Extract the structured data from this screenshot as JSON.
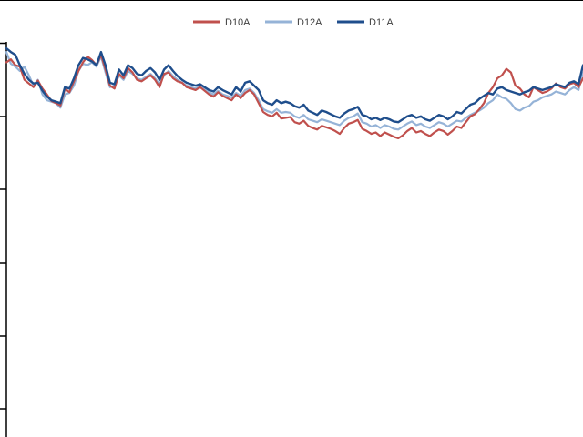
{
  "chart_data": {
    "type": "line",
    "title": "",
    "xlabel": "",
    "ylabel": "",
    "legend_position": "top-center",
    "grid": false,
    "ylim": [
      0,
      6
    ],
    "x": [
      0,
      5,
      10,
      15,
      20,
      25,
      30,
      35,
      40,
      45,
      50,
      55,
      60,
      65,
      70,
      75,
      80,
      85,
      90,
      95,
      100,
      105,
      110,
      115,
      120,
      125,
      130,
      135,
      140,
      145,
      150,
      155,
      160,
      165,
      170,
      175,
      180,
      185,
      190,
      195,
      200,
      205,
      210,
      215,
      220,
      225,
      230,
      235,
      240,
      245,
      250,
      255,
      260,
      265,
      270,
      275,
      280,
      285,
      290,
      295,
      300,
      305,
      310,
      315,
      320,
      325,
      330,
      335,
      340,
      345,
      350,
      355,
      360,
      365,
      370,
      375,
      380,
      385,
      390,
      395,
      400,
      405,
      410,
      415,
      420,
      425,
      430,
      435,
      440,
      445,
      450,
      455,
      460,
      465,
      470,
      475,
      480,
      485,
      490,
      495,
      500,
      505,
      510,
      515,
      520,
      525,
      530,
      535,
      540,
      545,
      550,
      555,
      560,
      565,
      570,
      575,
      580,
      585,
      590,
      595,
      600,
      605,
      610,
      615,
      620,
      625,
      630,
      635,
      640
    ],
    "series": [
      {
        "name": "D10A",
        "color": "#c0504d",
        "values": [
          4.74,
          4.78,
          4.7,
          4.68,
          4.5,
          4.45,
          4.4,
          4.49,
          4.38,
          4.3,
          4.21,
          4.18,
          4.15,
          4.38,
          4.33,
          4.48,
          4.62,
          4.74,
          4.82,
          4.77,
          4.7,
          4.84,
          4.64,
          4.42,
          4.38,
          4.58,
          4.52,
          4.66,
          4.6,
          4.5,
          4.48,
          4.52,
          4.56,
          4.5,
          4.4,
          4.58,
          4.6,
          4.52,
          4.48,
          4.46,
          4.4,
          4.38,
          4.36,
          4.4,
          4.35,
          4.3,
          4.27,
          4.33,
          4.28,
          4.25,
          4.22,
          4.3,
          4.25,
          4.32,
          4.36,
          4.3,
          4.18,
          4.06,
          4.02,
          4.0,
          4.05,
          3.97,
          3.98,
          3.99,
          3.92,
          3.9,
          3.94,
          3.87,
          3.84,
          3.82,
          3.87,
          3.85,
          3.83,
          3.8,
          3.76,
          3.84,
          3.9,
          3.92,
          3.95,
          3.83,
          3.8,
          3.76,
          3.78,
          3.73,
          3.78,
          3.75,
          3.72,
          3.7,
          3.74,
          3.8,
          3.84,
          3.78,
          3.8,
          3.76,
          3.73,
          3.78,
          3.82,
          3.8,
          3.75,
          3.8,
          3.86,
          3.84,
          3.92,
          4.0,
          4.03,
          4.1,
          4.18,
          4.32,
          4.4,
          4.52,
          4.56,
          4.65,
          4.6,
          4.42,
          4.38,
          4.3,
          4.26,
          4.4,
          4.36,
          4.32,
          4.34,
          4.38,
          4.45,
          4.4,
          4.38,
          4.44,
          4.46,
          4.4,
          4.52
        ]
      },
      {
        "name": "D12A",
        "color": "#95b3d7",
        "values": [
          4.88,
          4.72,
          4.68,
          4.62,
          4.68,
          4.56,
          4.42,
          4.5,
          4.3,
          4.22,
          4.2,
          4.18,
          4.12,
          4.3,
          4.32,
          4.42,
          4.62,
          4.72,
          4.7,
          4.74,
          4.68,
          4.82,
          4.6,
          4.4,
          4.42,
          4.56,
          4.5,
          4.62,
          4.58,
          4.52,
          4.5,
          4.54,
          4.58,
          4.52,
          4.44,
          4.56,
          4.62,
          4.55,
          4.5,
          4.46,
          4.42,
          4.4,
          4.38,
          4.42,
          4.38,
          4.33,
          4.3,
          4.35,
          4.3,
          4.28,
          4.26,
          4.32,
          4.28,
          4.36,
          4.38,
          4.32,
          4.22,
          4.1,
          4.07,
          4.05,
          4.1,
          4.05,
          4.06,
          4.05,
          4.0,
          3.98,
          4.02,
          3.96,
          3.94,
          3.92,
          3.96,
          3.94,
          3.92,
          3.9,
          3.88,
          3.94,
          3.98,
          4.0,
          4.04,
          3.92,
          3.9,
          3.86,
          3.88,
          3.84,
          3.88,
          3.86,
          3.83,
          3.82,
          3.86,
          3.9,
          3.93,
          3.88,
          3.9,
          3.86,
          3.84,
          3.88,
          3.92,
          3.9,
          3.86,
          3.9,
          3.94,
          3.93,
          3.98,
          4.02,
          4.05,
          4.08,
          4.12,
          4.18,
          4.22,
          4.3,
          4.26,
          4.24,
          4.18,
          4.1,
          4.08,
          4.12,
          4.14,
          4.2,
          4.22,
          4.26,
          4.28,
          4.3,
          4.34,
          4.32,
          4.3,
          4.36,
          4.4,
          4.36,
          4.6
        ]
      },
      {
        "name": "D11A",
        "color": "#1f4e8c",
        "values": [
          4.93,
          4.88,
          4.84,
          4.7,
          4.58,
          4.5,
          4.45,
          4.46,
          4.35,
          4.27,
          4.22,
          4.2,
          4.18,
          4.4,
          4.38,
          4.52,
          4.7,
          4.8,
          4.78,
          4.75,
          4.7,
          4.88,
          4.7,
          4.46,
          4.44,
          4.64,
          4.56,
          4.7,
          4.66,
          4.58,
          4.56,
          4.62,
          4.66,
          4.6,
          4.5,
          4.64,
          4.7,
          4.62,
          4.55,
          4.5,
          4.46,
          4.44,
          4.42,
          4.44,
          4.4,
          4.36,
          4.34,
          4.4,
          4.36,
          4.33,
          4.3,
          4.4,
          4.34,
          4.46,
          4.48,
          4.42,
          4.36,
          4.22,
          4.18,
          4.16,
          4.22,
          4.18,
          4.2,
          4.18,
          4.14,
          4.12,
          4.16,
          4.08,
          4.05,
          4.02,
          4.08,
          4.06,
          4.03,
          4.0,
          3.98,
          4.04,
          4.08,
          4.1,
          4.13,
          4.02,
          4.0,
          3.96,
          3.98,
          3.95,
          3.98,
          3.96,
          3.93,
          3.92,
          3.96,
          4.0,
          4.02,
          3.98,
          4.0,
          3.96,
          3.94,
          3.98,
          4.02,
          4.0,
          3.96,
          4.0,
          4.06,
          4.04,
          4.1,
          4.16,
          4.18,
          4.24,
          4.28,
          4.32,
          4.3,
          4.38,
          4.4,
          4.36,
          4.34,
          4.32,
          4.3,
          4.33,
          4.35,
          4.4,
          4.38,
          4.36,
          4.38,
          4.4,
          4.44,
          4.42,
          4.4,
          4.46,
          4.48,
          4.44,
          4.7
        ]
      }
    ]
  }
}
